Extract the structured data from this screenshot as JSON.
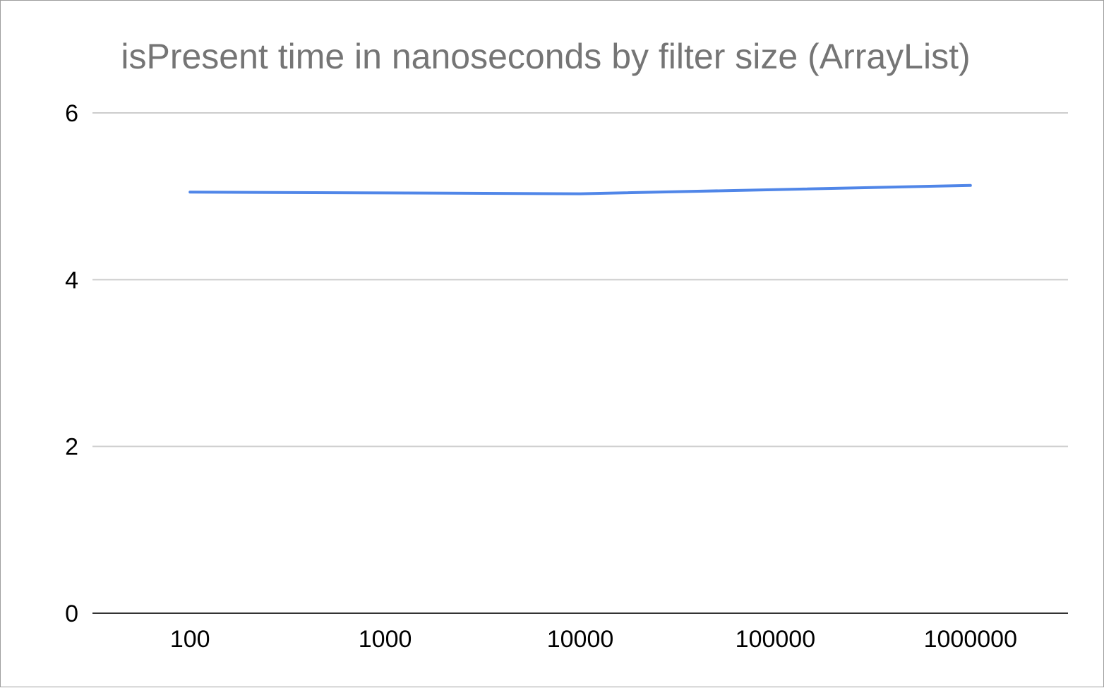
{
  "chart_data": {
    "type": "line",
    "title": "isPresent time in nanoseconds by filter size (ArrayList)",
    "xlabel": "",
    "ylabel": "",
    "categories": [
      "100",
      "1000",
      "10000",
      "100000",
      "1000000"
    ],
    "y_ticks": [
      "0",
      "2",
      "4",
      "6"
    ],
    "ylim": [
      0,
      6
    ],
    "grid": true,
    "legend": "none",
    "series": [
      {
        "values": [
          5.05,
          5.04,
          5.03,
          5.08,
          5.13
        ],
        "color": "#5086e8"
      }
    ]
  }
}
